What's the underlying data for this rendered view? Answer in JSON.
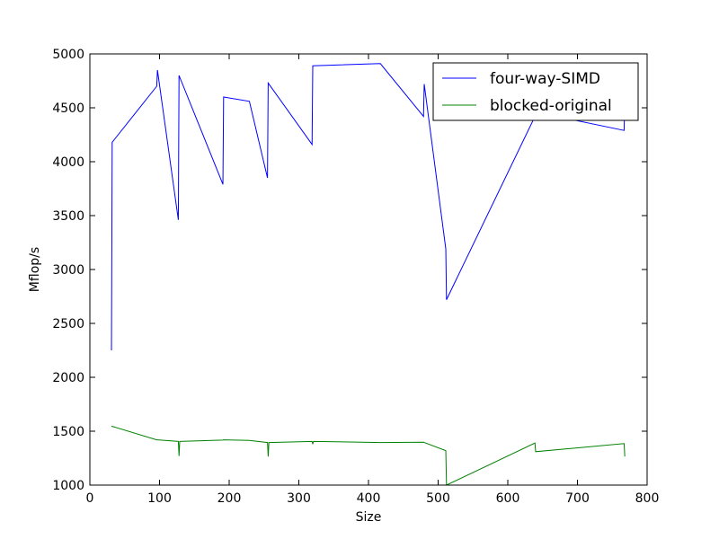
{
  "chart_data": {
    "type": "line",
    "title": "",
    "xlabel": "Size",
    "ylabel": "Mflop/s",
    "xlim": [
      0,
      800
    ],
    "ylim": [
      1000,
      5000
    ],
    "xticks": [
      0,
      100,
      200,
      300,
      400,
      500,
      600,
      700,
      800
    ],
    "yticks": [
      1000,
      1500,
      2000,
      2500,
      3000,
      3500,
      4000,
      4500,
      5000
    ],
    "grid": false,
    "legend_position": "top-right",
    "series": [
      {
        "name": "four-way-SIMD",
        "color": "#0000ff",
        "x": [
          31,
          32,
          96,
          97,
          127,
          128,
          191,
          192,
          229,
          255,
          256,
          319,
          320,
          417,
          479,
          480,
          511,
          512,
          639,
          640,
          767,
          768
        ],
        "y": [
          2250,
          4180,
          4700,
          4850,
          3460,
          4800,
          3790,
          4600,
          4560,
          3850,
          4730,
          4160,
          4890,
          4910,
          4420,
          4720,
          3190,
          2720,
          4420,
          4460,
          4290,
          4630
        ]
      },
      {
        "name": "blocked-original",
        "color": "#008000",
        "x": [
          31,
          32,
          96,
          97,
          127,
          128,
          129,
          191,
          192,
          229,
          255,
          256,
          257,
          319,
          320,
          321,
          417,
          479,
          480,
          511,
          512,
          639,
          640,
          767,
          768
        ],
        "y": [
          1545,
          1545,
          1420,
          1420,
          1405,
          1270,
          1405,
          1418,
          1420,
          1415,
          1395,
          1265,
          1395,
          1405,
          1380,
          1405,
          1395,
          1398,
          1395,
          1320,
          1000,
          1390,
          1310,
          1385,
          1265
        ]
      }
    ]
  }
}
